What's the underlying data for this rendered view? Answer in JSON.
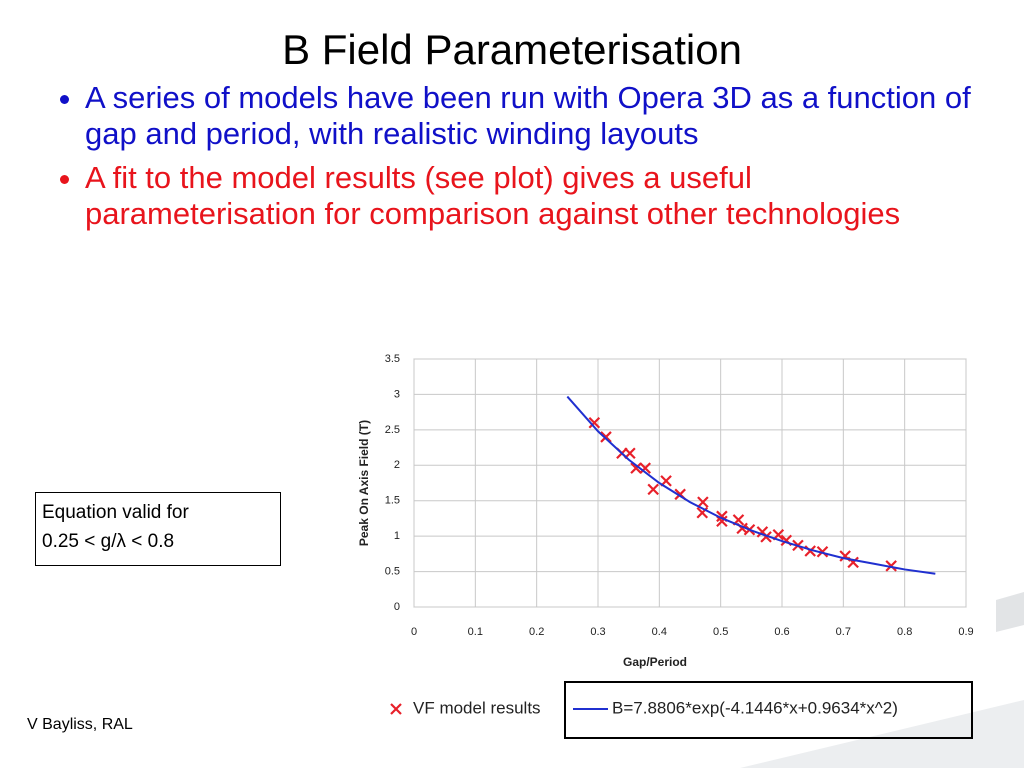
{
  "title": "B Field Parameterisation",
  "bullets": [
    "A series of models have been run with Opera 3D as a function of gap and period, with realistic winding layouts",
    "A fit to the model results (see plot) gives a useful parameterisation for comparison against other technologies"
  ],
  "note": [
    "Equation valid for",
    "0.25 < g/λ < 0.8"
  ],
  "footer": "V Bayliss, RAL",
  "chart_data": {
    "type": "scatter",
    "xlabel": "Gap/Period",
    "ylabel": "Peak On Axis Field (T)",
    "xlim": [
      0,
      0.9
    ],
    "ylim": [
      0,
      3.5
    ],
    "xticks": [
      0,
      0.1,
      0.2,
      0.3,
      0.4,
      0.5,
      0.6,
      0.7,
      0.8,
      0.9
    ],
    "yticks": [
      0,
      0.5,
      1,
      1.5,
      2,
      2.5,
      3,
      3.5
    ],
    "grid": true,
    "series": [
      {
        "name": "VF model results",
        "color": "#e8202a",
        "mark": "cross",
        "x": [
          0.294,
          0.313,
          0.339,
          0.352,
          0.362,
          0.377,
          0.39,
          0.411,
          0.434,
          0.47,
          0.471,
          0.502,
          0.502,
          0.529,
          0.535,
          0.547,
          0.568,
          0.574,
          0.594,
          0.607,
          0.626,
          0.646,
          0.666,
          0.703,
          0.716,
          0.778
        ],
        "values": [
          2.6,
          2.4,
          2.17,
          2.17,
          1.96,
          1.96,
          1.66,
          1.78,
          1.59,
          1.33,
          1.48,
          1.28,
          1.21,
          1.23,
          1.11,
          1.09,
          1.06,
          0.99,
          1.02,
          0.94,
          0.87,
          0.79,
          0.78,
          0.72,
          0.63,
          0.58
        ]
      },
      {
        "name": "B=7.8806*exp(-4.1446*x+0.9634*x^2)",
        "color": "#2030d0",
        "mark": "line",
        "x": [
          0.25,
          0.3,
          0.35,
          0.4,
          0.45,
          0.5,
          0.55,
          0.6,
          0.65,
          0.7,
          0.75,
          0.8,
          0.85
        ],
        "values": [
          2.97,
          2.48,
          2.08,
          1.75,
          1.48,
          1.26,
          1.08,
          0.93,
          0.8,
          0.69,
          0.61,
          0.53,
          0.47
        ]
      }
    ]
  }
}
